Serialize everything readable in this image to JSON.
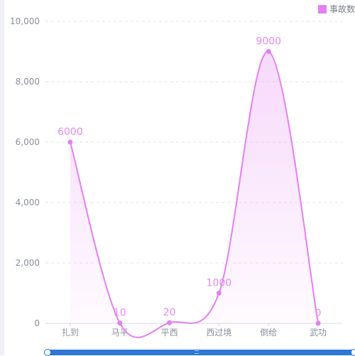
{
  "chart_data": {
    "type": "area",
    "categories": [
      "扎到",
      "马平",
      "平西",
      "西过境",
      "倒给",
      "武功"
    ],
    "series": [
      {
        "name": "事故数",
        "values": [
          6000,
          10,
          20,
          1000,
          9000,
          0
        ]
      }
    ],
    "y_ticks": [
      "0",
      "2,000",
      "4,000",
      "6,000",
      "8,000",
      "10,000"
    ],
    "ylim": [
      0,
      10000
    ],
    "grid": "horizontal dashed",
    "legend": "top-right",
    "smooth": true,
    "color": "#e480f2",
    "label_color": "#e48af0",
    "datazoom": "bottom"
  },
  "legend": {
    "label": "事故数",
    "icon": "square-swatch"
  }
}
